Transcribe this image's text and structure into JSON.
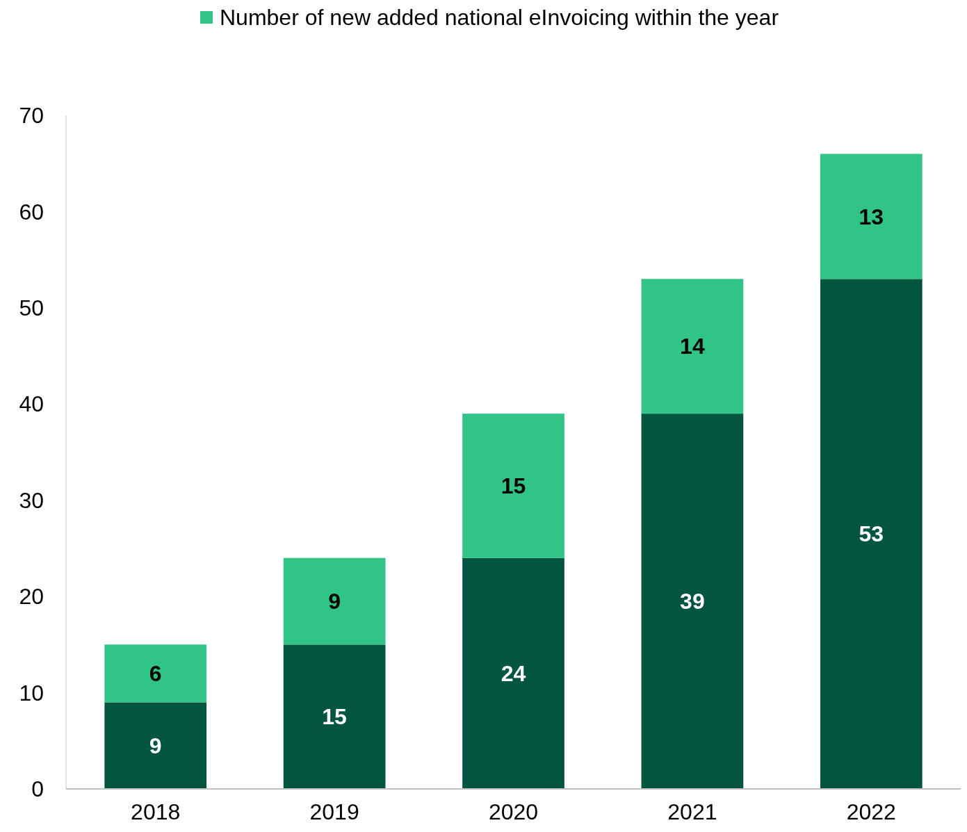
{
  "chart_data": {
    "type": "bar",
    "stacked": true,
    "categories": [
      "2018",
      "2019",
      "2020",
      "2021",
      "2022"
    ],
    "series": [
      {
        "color": "#02563f",
        "values": [
          9,
          15,
          24,
          39,
          53
        ]
      },
      {
        "name": "Number of new added national eInvoicing within the year",
        "color": "#30c587",
        "values": [
          6,
          9,
          15,
          14,
          13
        ]
      }
    ],
    "ylim": [
      0,
      70
    ],
    "yticks": [
      0,
      10,
      20,
      30,
      40,
      50,
      60,
      70
    ],
    "data_labels": true,
    "legend": "top",
    "grid": false
  }
}
